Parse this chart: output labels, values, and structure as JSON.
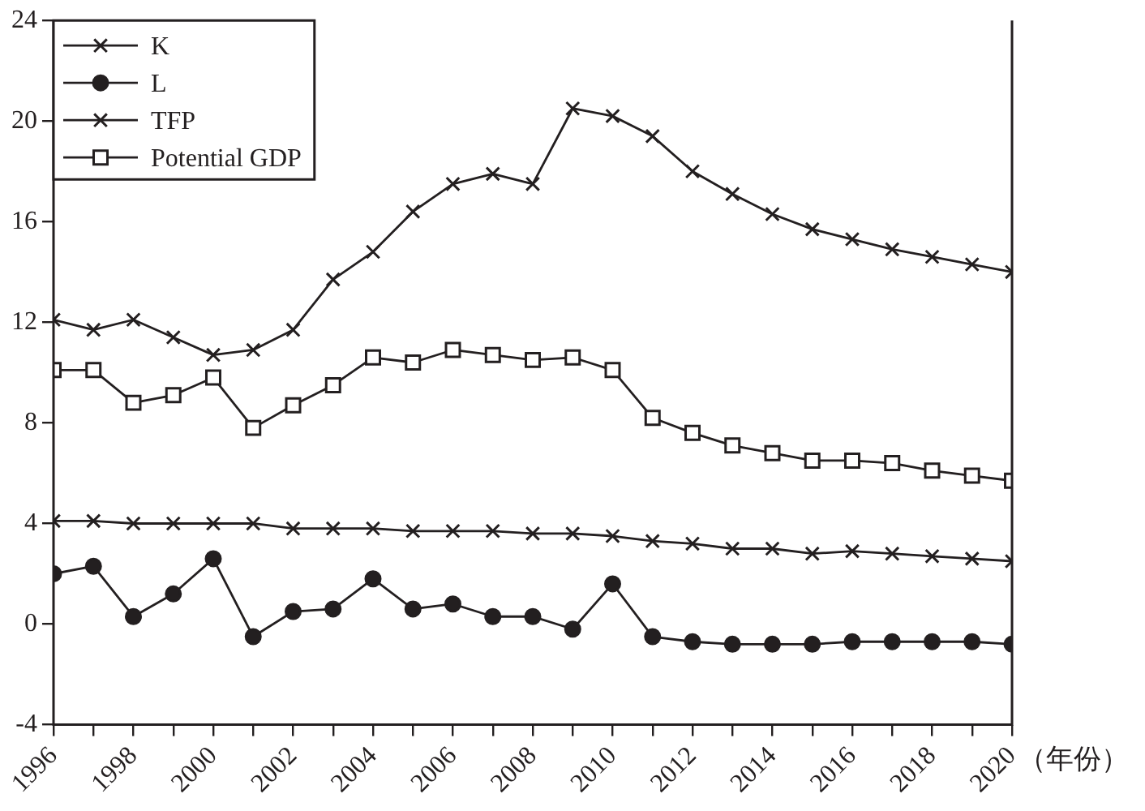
{
  "chart_data": {
    "type": "line",
    "xlabel": "（年份）",
    "x": [
      1996,
      1997,
      1998,
      1999,
      2000,
      2001,
      2002,
      2003,
      2004,
      2005,
      2006,
      2007,
      2008,
      2009,
      2010,
      2011,
      2012,
      2013,
      2014,
      2015,
      2016,
      2017,
      2018,
      2019,
      2020
    ],
    "series": [
      {
        "name": "K",
        "color": "#231f20",
        "marker": "cross",
        "values": [
          12.1,
          11.7,
          12.1,
          11.4,
          10.7,
          10.9,
          11.7,
          13.7,
          14.8,
          16.4,
          17.5,
          17.9,
          17.5,
          20.5,
          20.2,
          19.4,
          18.0,
          17.1,
          16.3,
          15.7,
          15.3,
          14.9,
          14.6,
          14.3,
          14.0
        ]
      },
      {
        "name": "L",
        "color": "#231f20",
        "marker": "circle",
        "values": [
          2.0,
          2.3,
          0.3,
          1.2,
          2.6,
          -0.5,
          0.5,
          0.6,
          1.8,
          0.6,
          0.8,
          0.3,
          0.3,
          -0.2,
          1.6,
          -0.5,
          -0.7,
          -0.8,
          -0.8,
          -0.8,
          -0.7,
          -0.7,
          -0.7,
          -0.7,
          -0.8
        ]
      },
      {
        "name": "TFP",
        "color": "#231f20",
        "marker": "cross",
        "values": [
          4.1,
          4.1,
          4.0,
          4.0,
          4.0,
          4.0,
          3.8,
          3.8,
          3.8,
          3.7,
          3.7,
          3.7,
          3.6,
          3.6,
          3.5,
          3.3,
          3.2,
          3.0,
          3.0,
          2.8,
          2.9,
          2.8,
          2.7,
          2.6,
          2.5
        ]
      },
      {
        "name": "Potential GDP",
        "color": "#231f20",
        "marker": "square",
        "values": [
          10.1,
          10.1,
          8.8,
          9.1,
          9.8,
          7.8,
          8.7,
          9.5,
          10.6,
          10.4,
          10.9,
          10.7,
          10.5,
          10.6,
          10.1,
          8.2,
          7.6,
          7.1,
          6.8,
          6.5,
          6.5,
          6.4,
          6.1,
          5.9,
          5.7
        ]
      }
    ],
    "xlim": [
      1996,
      2020
    ],
    "xticks": [
      1996,
      {
        "value": 1997,
        "label": null
      },
      1998,
      {
        "value": 1999,
        "label": null
      },
      2000,
      {
        "value": 2001,
        "label": null
      },
      2002,
      {
        "value": 2003,
        "label": null
      },
      2004,
      {
        "value": 2005,
        "label": null
      },
      2006,
      {
        "value": 2007,
        "label": null
      },
      2008,
      {
        "value": 2009,
        "label": null
      },
      2010,
      {
        "value": 2011,
        "label": null
      },
      2012,
      {
        "value": 2013,
        "label": null
      },
      2014,
      {
        "value": 2015,
        "label": null
      },
      2016,
      {
        "value": 2017,
        "label": null
      },
      2018,
      {
        "value": 2019,
        "label": null
      },
      2020
    ],
    "ylim": [
      -4,
      24
    ],
    "yticks": [
      -4,
      0,
      4,
      8,
      12,
      16,
      20,
      24
    ],
    "grid": false,
    "legend": "top left",
    "line_style": "solid"
  }
}
